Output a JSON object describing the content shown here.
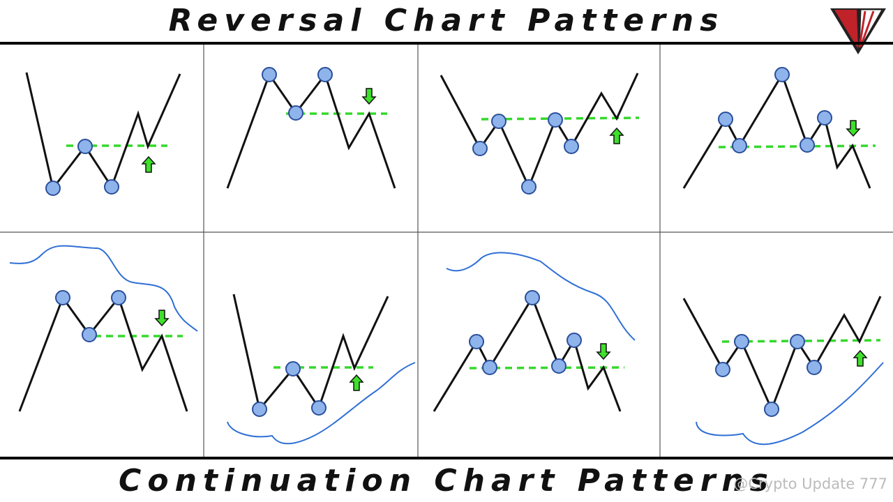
{
  "header": {
    "title": "Reversal Chart Patterns"
  },
  "footer": {
    "title": "Continuation Chart Patterns"
  },
  "watermark": {
    "text": "@Crypto Update 777"
  }
}
